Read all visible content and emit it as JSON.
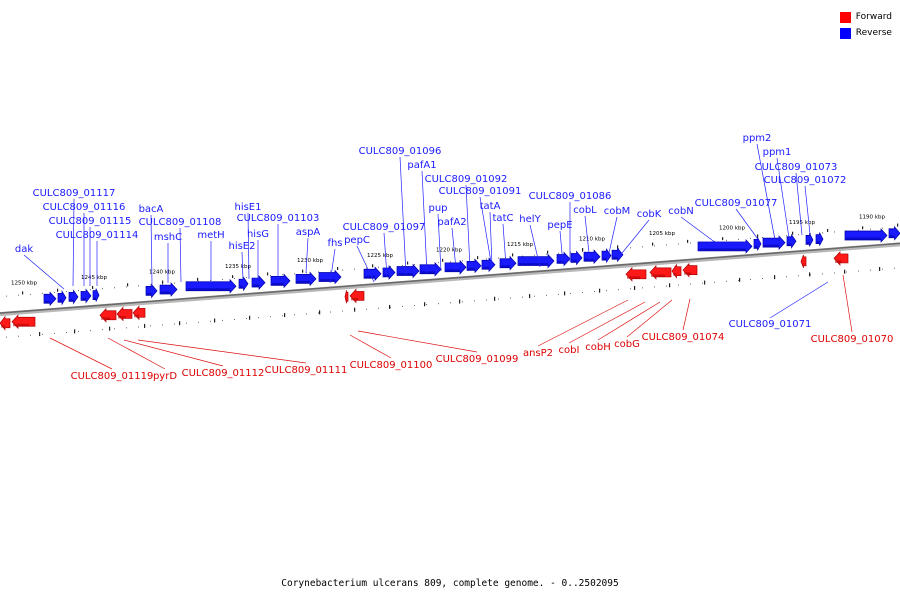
{
  "legend": [
    {
      "label": "Forward",
      "color": "#ff0000"
    },
    {
      "label": "Reverse",
      "color": "#0000ff"
    }
  ],
  "caption": "Corynebacterium ulcerans 809, complete genome. - 0..2502095",
  "axis": {
    "unit": "kbp",
    "ticks": [
      {
        "label": "1250 kbp",
        "kbp": 1250
      },
      {
        "label": "1245 kbp",
        "kbp": 1245
      },
      {
        "label": "1240 kbp",
        "kbp": 1240
      },
      {
        "label": "1235 kbp",
        "kbp": 1235
      },
      {
        "label": "1230 kbp",
        "kbp": 1230
      },
      {
        "label": "1225 kbp",
        "kbp": 1225
      },
      {
        "label": "1220 kbp",
        "kbp": 1220
      },
      {
        "label": "1215 kbp",
        "kbp": 1215
      },
      {
        "label": "1210 kbp",
        "kbp": 1210
      },
      {
        "label": "1205 kbp",
        "kbp": 1205
      },
      {
        "label": "1200 kbp",
        "kbp": 1200
      },
      {
        "label": "1195 kbp",
        "kbp": 1195
      },
      {
        "label": "1190 kbp",
        "kbp": 1190
      }
    ]
  },
  "genes": {
    "reverse": [
      "dak",
      "CULC809_01117",
      "CULC809_01116",
      "CULC809_01115",
      "CULC809_01114",
      "bacA",
      "mshC",
      "CULC809_01108",
      "metH",
      "hisE2",
      "hisE1",
      "hisG",
      "CULC809_01103",
      "aspA",
      "fhs",
      "pepC",
      "CULC809_01097",
      "CULC809_01096",
      "pafA1",
      "pup",
      "pafA2",
      "CULC809_01092",
      "CULC809_01091",
      "tatA",
      "tatC",
      "helY",
      "pepE",
      "CULC809_01086",
      "cobL",
      "cobM",
      "cobK",
      "cobN",
      "CULC809_01077",
      "ppm2",
      "ppm1",
      "CULC809_01073",
      "CULC809_01072",
      "CULC809_01071"
    ],
    "forward": [
      "CULC809_01119",
      "pyrD",
      "CULC809_01112",
      "CULC809_01111",
      "CULC809_01100",
      "CULC809_01099",
      "ansP2",
      "cobI",
      "cobH",
      "cobG",
      "CULC809_01074",
      "CULC809_01070"
    ]
  }
}
